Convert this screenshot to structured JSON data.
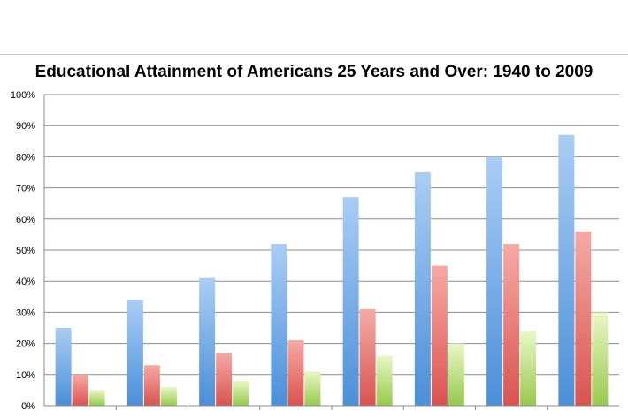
{
  "chart_data": {
    "type": "bar",
    "title": "Educational Attainment of Americans 25 Years and Over: 1940 to 2009",
    "xlabel": "",
    "ylabel": "",
    "ylim": [
      0,
      100
    ],
    "yticks": [
      "0%",
      "10%",
      "20%",
      "30%",
      "40%",
      "50%",
      "60%",
      "70%",
      "80%",
      "90%",
      "100%"
    ],
    "grid": true,
    "legend": "none",
    "categories": [
      "",
      "",
      "",
      "",
      "",
      "",
      "",
      ""
    ],
    "series": [
      {
        "values": [
          25,
          34,
          41,
          52,
          67,
          75,
          80,
          87
        ],
        "color": "#5b9bd5"
      },
      {
        "values": [
          10,
          13,
          17,
          21,
          31,
          45,
          52,
          56
        ],
        "color": "#e06666"
      },
      {
        "values": [
          5,
          6,
          8,
          11,
          16,
          20,
          24,
          30
        ],
        "color": "#a9d05a"
      }
    ]
  }
}
